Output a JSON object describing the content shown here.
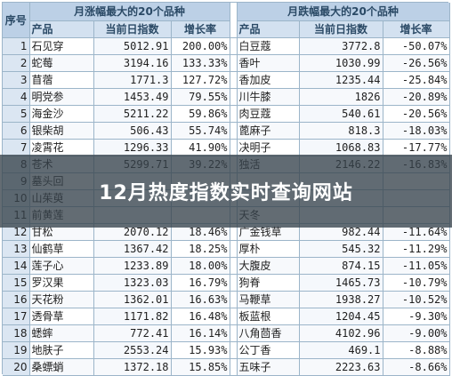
{
  "title": "12月热度指数实时查询网站",
  "table": {
    "seq_header": "序号",
    "left_title": "月涨幅最大的20个品种",
    "right_title": "月跌幅最大的20个品种",
    "col_name": "产品",
    "col_index": "当前日指数",
    "col_rate": "增长率",
    "rows": [
      {
        "seq": "1",
        "l_name": "石见穿",
        "l_index": "5012.91",
        "l_rate": "200.00%",
        "r_name": "白豆蔻",
        "r_index": "3772.8",
        "r_rate": "-50.07%"
      },
      {
        "seq": "2",
        "l_name": "蛇莓",
        "l_index": "3194.16",
        "l_rate": "133.33%",
        "r_name": "香叶",
        "r_index": "1030.99",
        "r_rate": "-26.56%"
      },
      {
        "seq": "3",
        "l_name": "苜蓿",
        "l_index": "1771.3",
        "l_rate": "127.72%",
        "r_name": "香加皮",
        "r_index": "1235.44",
        "r_rate": "-25.84%"
      },
      {
        "seq": "4",
        "l_name": "明党参",
        "l_index": "1453.49",
        "l_rate": "79.55%",
        "r_name": "川牛膝",
        "r_index": "1826",
        "r_rate": "-20.89%"
      },
      {
        "seq": "5",
        "l_name": "海金沙",
        "l_index": "5211.22",
        "l_rate": "59.86%",
        "r_name": "肉豆蔻",
        "r_index": "540.61",
        "r_rate": "-20.56%"
      },
      {
        "seq": "6",
        "l_name": "银柴胡",
        "l_index": "506.43",
        "l_rate": "55.74%",
        "r_name": "蓖麻子",
        "r_index": "818.3",
        "r_rate": "-18.03%"
      },
      {
        "seq": "7",
        "l_name": "凌霄花",
        "l_index": "1296.33",
        "l_rate": "41.90%",
        "r_name": "决明子",
        "r_index": "1068.83",
        "r_rate": "-17.77%"
      },
      {
        "seq": "8",
        "l_name": "苍术",
        "l_index": "5299.71",
        "l_rate": "39.22%",
        "r_name": "独活",
        "r_index": "2146.22",
        "r_rate": "-16.83%"
      },
      {
        "seq": "9",
        "l_name": "墓头回",
        "l_index": "",
        "l_rate": "",
        "r_name": "",
        "r_index": "",
        "r_rate": ""
      },
      {
        "seq": "10",
        "l_name": "山茱萸",
        "l_index": "",
        "l_rate": "",
        "r_name": "",
        "r_index": "",
        "r_rate": ""
      },
      {
        "seq": "11",
        "l_name": "前黄莲",
        "l_index": "",
        "l_rate": "",
        "r_name": "天冬",
        "r_index": "",
        "r_rate": ""
      },
      {
        "seq": "12",
        "l_name": "甘松",
        "l_index": "2070.12",
        "l_rate": "18.46%",
        "r_name": "广金钱草",
        "r_index": "982.44",
        "r_rate": "-11.64%"
      },
      {
        "seq": "13",
        "l_name": "仙鹤草",
        "l_index": "1367.42",
        "l_rate": "18.25%",
        "r_name": "厚朴",
        "r_index": "545.32",
        "r_rate": "-11.29%"
      },
      {
        "seq": "14",
        "l_name": "莲子心",
        "l_index": "1233.89",
        "l_rate": "18.00%",
        "r_name": "大腹皮",
        "r_index": "874.15",
        "r_rate": "-11.05%"
      },
      {
        "seq": "15",
        "l_name": "罗汉果",
        "l_index": "1323.03",
        "l_rate": "16.79%",
        "r_name": "狗脊",
        "r_index": "1465.73",
        "r_rate": "-10.79%"
      },
      {
        "seq": "16",
        "l_name": "天花粉",
        "l_index": "1362.01",
        "l_rate": "16.63%",
        "r_name": "马鞭草",
        "r_index": "1938.27",
        "r_rate": "-10.52%"
      },
      {
        "seq": "17",
        "l_name": "透骨草",
        "l_index": "1171.82",
        "l_rate": "16.48%",
        "r_name": "板蓝根",
        "r_index": "1204.45",
        "r_rate": "-9.30%"
      },
      {
        "seq": "18",
        "l_name": "蟋蟀",
        "l_index": "772.41",
        "l_rate": "16.14%",
        "r_name": "八角茴香",
        "r_index": "4102.96",
        "r_rate": "-9.00%"
      },
      {
        "seq": "19",
        "l_name": "地肤子",
        "l_index": "2553.24",
        "l_rate": "15.93%",
        "r_name": "公丁香",
        "r_index": "469.1",
        "r_rate": "-8.88%"
      },
      {
        "seq": "20",
        "l_name": "桑螵蛸",
        "l_index": "1372.18",
        "l_rate": "15.85%",
        "r_name": "五味子",
        "r_index": "2223.63",
        "r_rate": "-8.66%"
      }
    ]
  }
}
